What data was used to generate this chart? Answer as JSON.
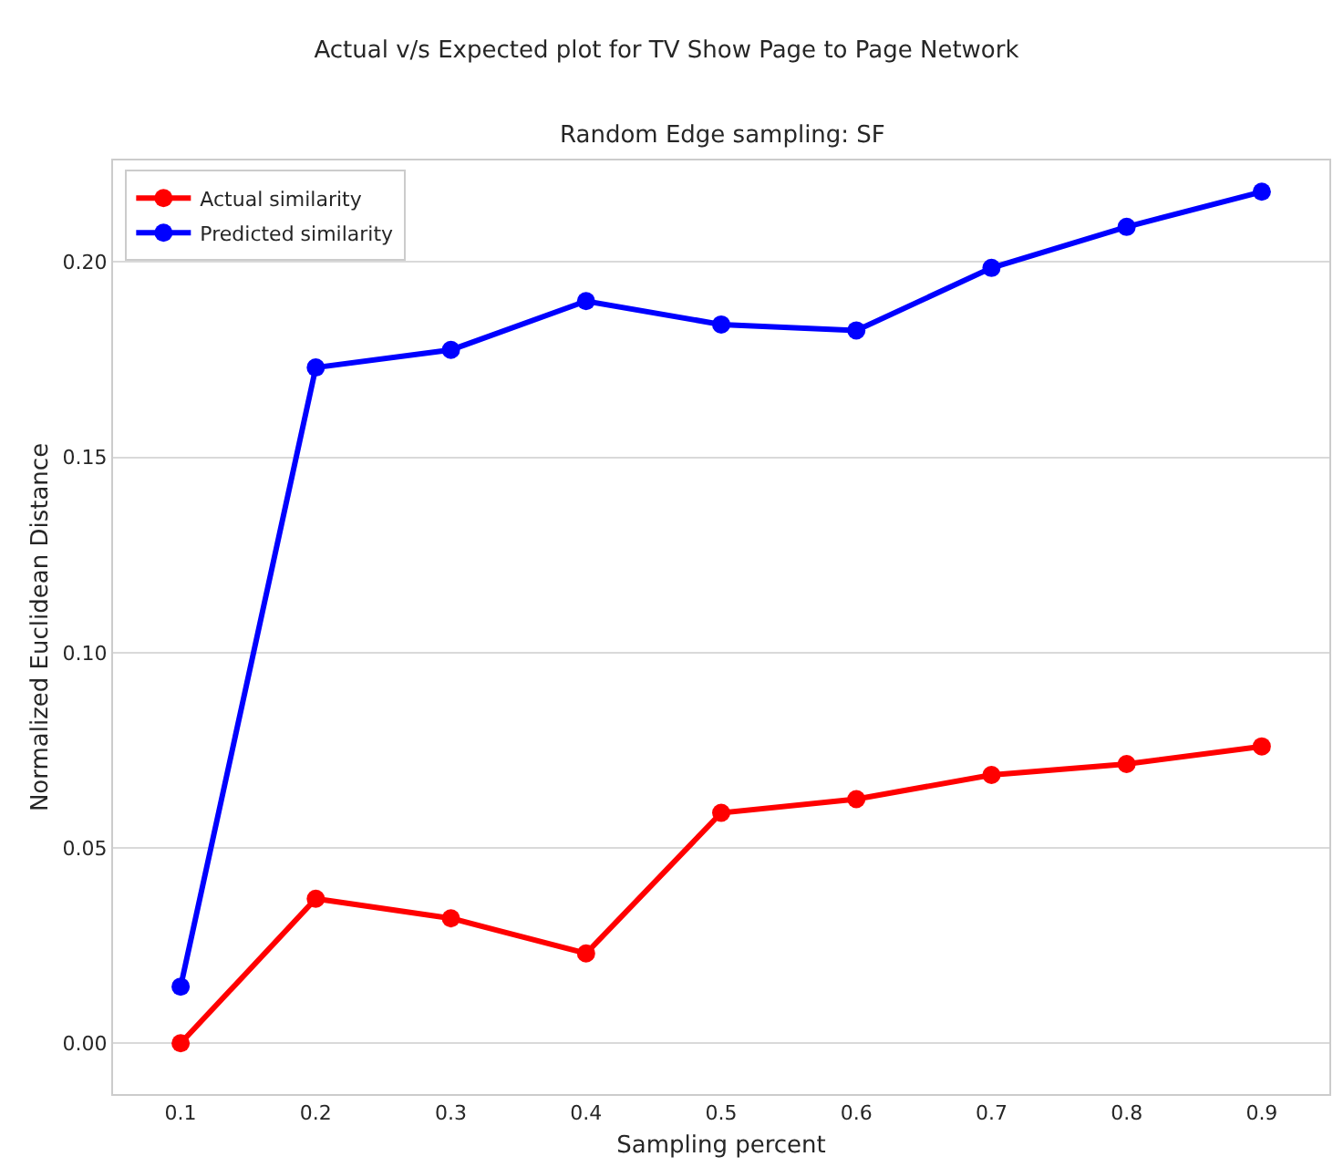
{
  "chart_data": {
    "type": "line",
    "title": "Actual v/s Expected plot for TV Show Page to Page Network",
    "subtitle": "Random Edge sampling: SF",
    "xlabel": "Sampling percent",
    "ylabel": "Normalized Euclidean Distance",
    "categories": [
      "0.1",
      "0.2",
      "0.3",
      "0.4",
      "0.5",
      "0.6",
      "0.7",
      "0.8",
      "0.9"
    ],
    "series": [
      {
        "name": "Actual similarity",
        "color": "#ff0000",
        "values": [
          0.0,
          0.037,
          0.032,
          0.023,
          0.059,
          0.0625,
          0.0687,
          0.0715,
          0.076
        ]
      },
      {
        "name": "Predicted similarity",
        "color": "#0000ff",
        "values": [
          0.0145,
          0.173,
          0.1775,
          0.19,
          0.184,
          0.1825,
          0.1985,
          0.209,
          0.218
        ]
      }
    ],
    "ylim": [
      -0.013,
      0.226
    ],
    "yticks": [
      {
        "value": 0,
        "label": "0.00"
      },
      {
        "value": 0.05,
        "label": "0.05"
      },
      {
        "value": 0.1,
        "label": "0.10"
      },
      {
        "value": 0.15,
        "label": "0.15"
      },
      {
        "value": 0.2,
        "label": "0.20"
      }
    ],
    "grid": "y",
    "legend": "top left",
    "marker": "circle",
    "line_style": "solid"
  }
}
